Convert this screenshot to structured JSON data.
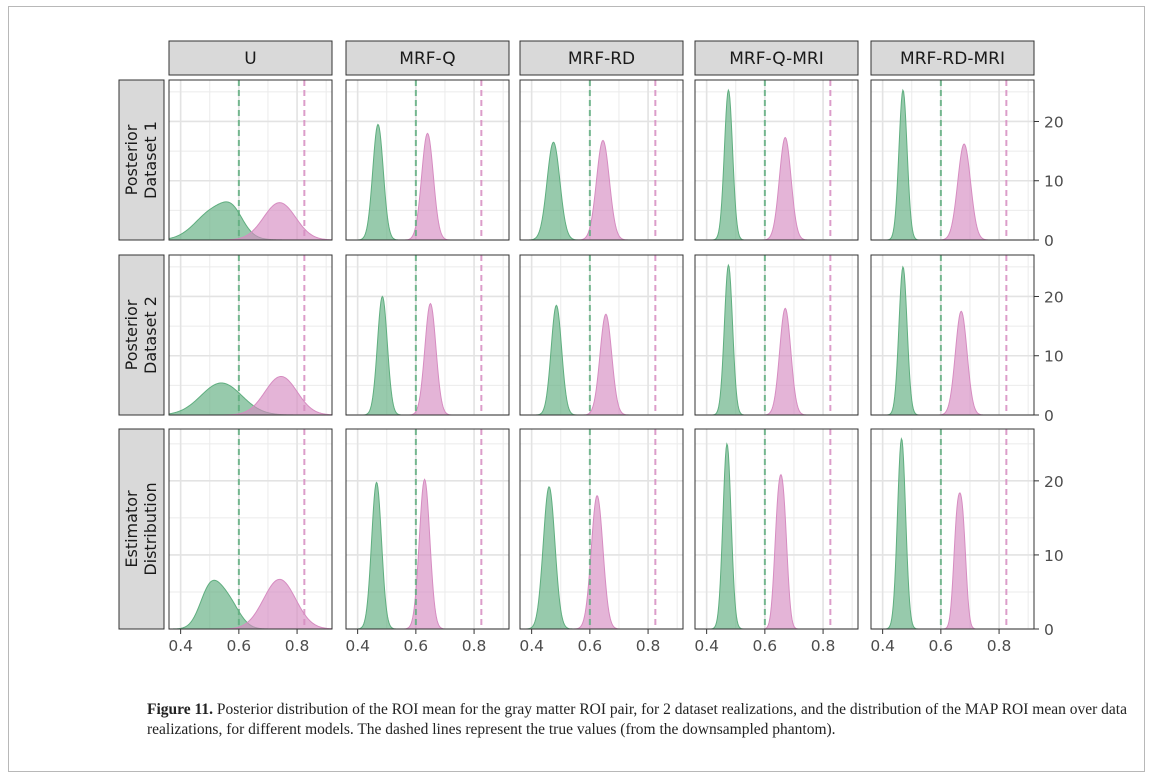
{
  "figure": {
    "caption_label": "Figure 11.",
    "caption_text": " Posterior distribution of the ROI mean for the gray matter ROI pair, for 2 dataset realizations, and the distribution of the MAP ROI mean over data realizations, for different models. The dashed lines represent the true values (from the downsampled phantom)."
  },
  "colors": {
    "green": "#5fae7f",
    "pink": "#d68cc1",
    "strip_bg": "#d9d9d9",
    "grid": "#ebebeb"
  },
  "chart_data": {
    "type": "area",
    "facet_columns": [
      "U",
      "MRF-Q",
      "MRF-RD",
      "MRF-Q-MRI",
      "MRF-RD-MRI"
    ],
    "facet_rows": [
      "Posterior\nDataset 1",
      "Posterior\nDataset 2",
      "Estimator\nDistribution"
    ],
    "x_ticks": [
      0.4,
      0.6,
      0.8
    ],
    "y_ticks": [
      0,
      10,
      20
    ],
    "xlim": [
      0.36,
      0.92
    ],
    "ylim": [
      0,
      27
    ],
    "true_values": {
      "green": 0.6,
      "pink": 0.825
    },
    "grid": true,
    "panels": [
      [
        {
          "g": [
            {
              "m": 0.52,
              "s": 0.065,
              "h": 5.2
            },
            {
              "m": 0.58,
              "s": 0.035,
              "h": 2.5
            }
          ],
          "p": [
            {
              "m": 0.74,
              "s": 0.055,
              "h": 6.3
            }
          ]
        },
        {
          "g": [
            {
              "m": 0.47,
              "s": 0.018,
              "h": 19.5
            }
          ],
          "p": [
            {
              "m": 0.64,
              "s": 0.02,
              "h": 18.0
            }
          ]
        },
        {
          "g": [
            {
              "m": 0.475,
              "s": 0.022,
              "h": 16.5
            }
          ],
          "p": [
            {
              "m": 0.645,
              "s": 0.022,
              "h": 16.8
            }
          ]
        },
        {
          "g": [
            {
              "m": 0.475,
              "s": 0.014,
              "h": 25.3
            }
          ],
          "p": [
            {
              "m": 0.67,
              "s": 0.02,
              "h": 17.3
            }
          ]
        },
        {
          "g": [
            {
              "m": 0.47,
              "s": 0.014,
              "h": 25.3
            }
          ],
          "p": [
            {
              "m": 0.68,
              "s": 0.022,
              "h": 16.2
            }
          ]
        }
      ],
      [
        {
          "g": [
            {
              "m": 0.54,
              "s": 0.07,
              "h": 5.4
            }
          ],
          "p": [
            {
              "m": 0.745,
              "s": 0.055,
              "h": 6.5
            }
          ]
        },
        {
          "g": [
            {
              "m": 0.485,
              "s": 0.017,
              "h": 20.0
            }
          ],
          "p": [
            {
              "m": 0.65,
              "s": 0.019,
              "h": 18.8
            }
          ]
        },
        {
          "g": [
            {
              "m": 0.485,
              "s": 0.018,
              "h": 18.5
            }
          ],
          "p": [
            {
              "m": 0.655,
              "s": 0.02,
              "h": 17.0
            }
          ]
        },
        {
          "g": [
            {
              "m": 0.475,
              "s": 0.014,
              "h": 25.3
            }
          ],
          "p": [
            {
              "m": 0.67,
              "s": 0.019,
              "h": 18.0
            }
          ]
        },
        {
          "g": [
            {
              "m": 0.47,
              "s": 0.014,
              "h": 25.0
            }
          ],
          "p": [
            {
              "m": 0.67,
              "s": 0.02,
              "h": 17.5
            }
          ]
        }
      ],
      [
        {
          "g": [
            {
              "m": 0.5,
              "s": 0.035,
              "h": 5.0
            },
            {
              "m": 0.56,
              "s": 0.04,
              "h": 3.8
            }
          ],
          "p": [
            {
              "m": 0.74,
              "s": 0.055,
              "h": 6.7
            }
          ]
        },
        {
          "g": [
            {
              "m": 0.465,
              "s": 0.017,
              "h": 19.8
            }
          ],
          "p": [
            {
              "m": 0.63,
              "s": 0.018,
              "h": 20.2
            }
          ]
        },
        {
          "g": [
            {
              "m": 0.46,
              "s": 0.02,
              "h": 19.2
            }
          ],
          "p": [
            {
              "m": 0.625,
              "s": 0.02,
              "h": 18.0
            }
          ]
        },
        {
          "g": [
            {
              "m": 0.47,
              "s": 0.014,
              "h": 25.0
            }
          ],
          "p": [
            {
              "m": 0.645,
              "s": 0.013,
              "h": 14.0
            },
            {
              "m": 0.665,
              "s": 0.013,
              "h": 14.0
            }
          ]
        },
        {
          "g": [
            {
              "m": 0.465,
              "s": 0.014,
              "h": 25.7
            }
          ],
          "p": [
            {
              "m": 0.655,
              "s": 0.012,
              "h": 13.0
            },
            {
              "m": 0.675,
              "s": 0.012,
              "h": 13.0
            }
          ]
        }
      ]
    ]
  }
}
